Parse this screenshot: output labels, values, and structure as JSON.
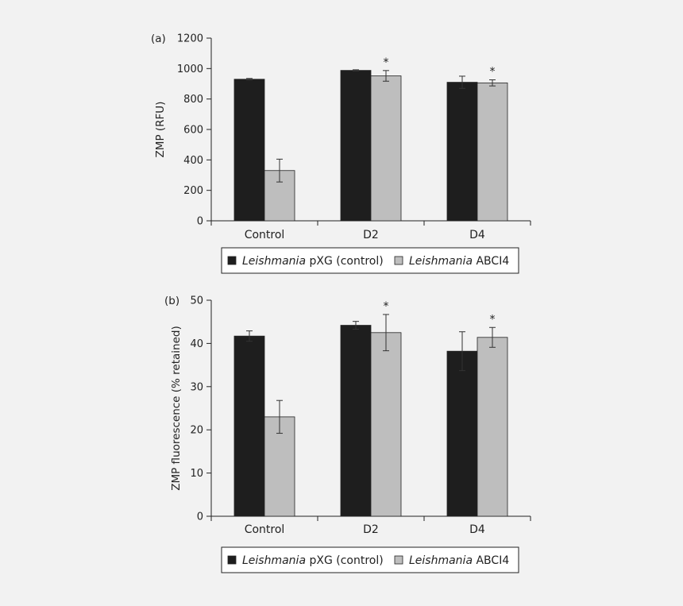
{
  "chart_data": [
    {
      "type": "bar",
      "panel_label": "(a)",
      "ylabel": "ZMP (RFU)",
      "ylim": [
        0,
        1200
      ],
      "yticks": [
        0,
        200,
        400,
        600,
        800,
        1000,
        1200
      ],
      "categories": [
        "Control",
        "D2",
        "D4"
      ],
      "series": [
        {
          "name": "Leishmania pXG (control)",
          "values": [
            930,
            988,
            910
          ],
          "errors": [
            5,
            4,
            40
          ],
          "color": "#1e1e1e"
        },
        {
          "name": "Leishmania ABCI4",
          "values": [
            330,
            952,
            906
          ],
          "errors": [
            75,
            35,
            20
          ],
          "color": "#bebebe"
        }
      ],
      "significance": [
        null,
        "*",
        "*"
      ],
      "legend": {
        "placement": "bottom",
        "entries": [
          {
            "italic": "Leishmania",
            "rest": " pXG (control)"
          },
          {
            "italic": "Leishmania",
            "rest": " ABCI4"
          }
        ]
      }
    },
    {
      "type": "bar",
      "panel_label": "(b)",
      "ylabel": "ZMP fluorescence (% retained)",
      "ylim": [
        0,
        50
      ],
      "yticks": [
        0,
        10,
        20,
        30,
        40,
        50
      ],
      "categories": [
        "Control",
        "D2",
        "D4"
      ],
      "series": [
        {
          "name": "Leishmania pXG (control)",
          "values": [
            41.7,
            44.2,
            38.2
          ],
          "errors": [
            1.2,
            0.9,
            4.5
          ],
          "color": "#1e1e1e"
        },
        {
          "name": "Leishmania ABCI4",
          "values": [
            23.0,
            42.5,
            41.4
          ],
          "errors": [
            3.8,
            4.2,
            2.3
          ],
          "color": "#bebebe"
        }
      ],
      "significance": [
        null,
        "*",
        "*"
      ],
      "legend": {
        "placement": "bottom",
        "entries": [
          {
            "italic": "Leishmania",
            "rest": " pXG (control)"
          },
          {
            "italic": "Leishmania",
            "rest": " ABCI4"
          }
        ]
      }
    }
  ]
}
